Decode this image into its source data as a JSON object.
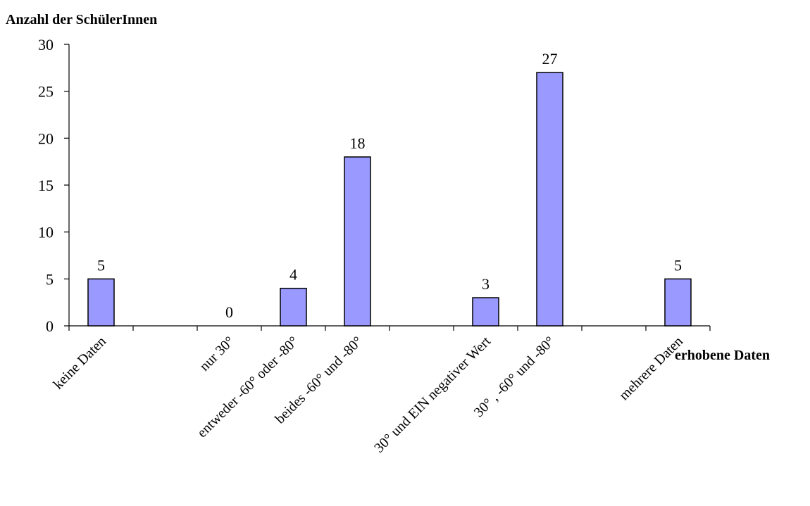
{
  "chart_data": {
    "type": "bar",
    "ylabel": "Anzahl der SchülerInnen",
    "xlabel": "erhobene Daten",
    "categories": [
      "keine Daten",
      "nur 30°",
      "entweder -60° oder -80°",
      "beides -60° und -80°",
      "30° und EIN negativer Wert",
      "30° , -60° und -80°",
      "mehrere Daten"
    ],
    "values": [
      5,
      0,
      4,
      18,
      3,
      27,
      5
    ],
    "ylim": [
      0,
      30
    ],
    "yticks": [
      0,
      5,
      10,
      15,
      20,
      25,
      30
    ],
    "data_labels": true,
    "legend": false,
    "grid": false,
    "bar_color": "#9999ff",
    "bar_stroke": "#000000"
  }
}
